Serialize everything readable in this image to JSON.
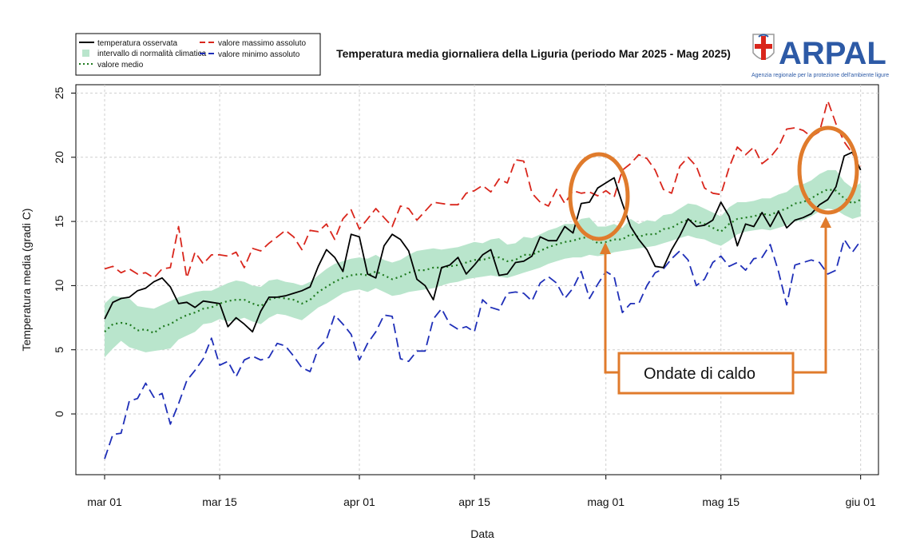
{
  "chart_data": {
    "type": "line",
    "title": "Temperatura media giornaliera della Liguria (periodo Mar 2025 - Mag 2025)",
    "xlabel": "Data",
    "ylabel": "Temperatura media (gradi C)",
    "ylim": [
      -4.5,
      25.5
    ],
    "yticks": [
      "0",
      "5",
      "10",
      "15",
      "20",
      "25"
    ],
    "xticks": [
      {
        "label": "mar 01",
        "day": 0
      },
      {
        "label": "mar 15",
        "day": 14
      },
      {
        "label": "apr 01",
        "day": 31
      },
      {
        "label": "apr 15",
        "day": 45
      },
      {
        "label": "mag 01",
        "day": 61
      },
      {
        "label": "mag 15",
        "day": 75
      },
      {
        "label": "giu 01",
        "day": 92
      }
    ],
    "grid": true,
    "legend_position": "top-left",
    "legend": [
      {
        "label": "temperatura osservata",
        "color": "#000000",
        "style": "solid"
      },
      {
        "label": "intervallo di normalità climatica",
        "color": "#b9e5cc",
        "style": "band"
      },
      {
        "label": "valore medio",
        "color": "#1f7a1f",
        "style": "dotted"
      },
      {
        "label": "valore massimo assoluto",
        "color": "#d9261c",
        "style": "dashed"
      },
      {
        "label": "valore minimo assoluto",
        "color": "#1f2fb8",
        "style": "dashed"
      }
    ],
    "series": [
      {
        "name": "temperatura osservata",
        "color": "#000000",
        "values": [
          7.4,
          8.7,
          9.0,
          9.1,
          9.6,
          9.8,
          10.3,
          10.6,
          9.9,
          8.6,
          8.7,
          8.3,
          8.8,
          8.7,
          8.6,
          6.8,
          7.5,
          7.0,
          6.4,
          8.0,
          9.1,
          9.1,
          9.2,
          9.4,
          9.6,
          9.9,
          11.5,
          12.8,
          12.2,
          11.1,
          14.0,
          13.8,
          10.9,
          10.6,
          13.1,
          14.0,
          13.6,
          12.7,
          10.5,
          10.0,
          8.9,
          11.4,
          11.6,
          12.2,
          10.9,
          11.6,
          12.4,
          12.8,
          10.8,
          10.9,
          11.8,
          11.9,
          12.3,
          13.8,
          13.5,
          13.5,
          14.6,
          14.1,
          16.4,
          16.5,
          17.6,
          18.0,
          18.4,
          16.4,
          14.6,
          13.6,
          12.8,
          11.5,
          11.4,
          12.8,
          13.9,
          15.2,
          14.6,
          14.7,
          15.1,
          16.5,
          15.4,
          13.1,
          14.8,
          14.6,
          15.7,
          14.6,
          15.8,
          14.5,
          15.1,
          15.3,
          15.6,
          16.3,
          16.7,
          17.7,
          20.1,
          20.4,
          19.0
        ]
      },
      {
        "name": "valore medio",
        "color": "#1f7a1f",
        "values": [
          6.4,
          7.0,
          7.1,
          7.0,
          6.5,
          6.6,
          6.3,
          6.8,
          7.0,
          7.4,
          7.7,
          7.9,
          8.2,
          8.3,
          8.6,
          8.8,
          8.9,
          8.9,
          8.6,
          8.4,
          8.9,
          9.1,
          9.0,
          8.9,
          8.6,
          8.9,
          9.5,
          9.9,
          10.3,
          10.6,
          10.8,
          10.9,
          10.8,
          11.1,
          10.8,
          10.5,
          10.7,
          11.0,
          11.2,
          11.2,
          11.4,
          11.4,
          11.5,
          11.6,
          11.8,
          12.0,
          12.0,
          12.2,
          12.2,
          11.9,
          12.0,
          12.4,
          12.4,
          12.7,
          13.0,
          13.2,
          13.4,
          13.5,
          13.7,
          13.8,
          13.3,
          13.4,
          13.6,
          13.6,
          14.0,
          13.8,
          14.0,
          14.0,
          14.4,
          14.5,
          14.9,
          15.1,
          15.0,
          14.8,
          14.5,
          14.2,
          14.8,
          15.2,
          15.3,
          15.4,
          15.6,
          15.5,
          15.8,
          16.0,
          16.4,
          16.5,
          16.8,
          17.2,
          17.5,
          17.4,
          16.8,
          16.4,
          16.7
        ]
      },
      {
        "name": "valore massimo assoluto",
        "color": "#d9261c",
        "values": [
          11.3,
          11.5,
          11.0,
          11.3,
          10.9,
          11.0,
          10.6,
          11.3,
          11.4,
          14.6,
          10.6,
          12.6,
          11.7,
          12.4,
          12.4,
          12.3,
          12.6,
          11.4,
          12.9,
          12.7,
          13.3,
          13.8,
          14.3,
          13.8,
          12.8,
          14.3,
          14.2,
          14.8,
          13.6,
          15.2,
          15.9,
          14.4,
          15.2,
          16.0,
          15.3,
          14.6,
          16.2,
          16.0,
          15.1,
          15.8,
          16.5,
          16.4,
          16.3,
          16.3,
          17.2,
          17.4,
          17.8,
          17.3,
          18.3,
          18.0,
          19.8,
          19.7,
          17.2,
          16.5,
          16.2,
          17.5,
          16.4,
          17.4,
          17.2,
          17.3,
          17.0,
          17.4,
          16.9,
          19.0,
          19.5,
          20.2,
          19.9,
          19.0,
          17.5,
          17.2,
          19.3,
          20.0,
          19.3,
          17.6,
          17.2,
          17.1,
          19.2,
          20.8,
          20.2,
          20.8,
          19.5,
          20.0,
          20.8,
          22.2,
          22.3,
          22.1,
          21.6,
          22.0,
          24.4,
          22.6,
          21.2,
          20.3,
          19.3
        ]
      },
      {
        "name": "valore minimo assoluto",
        "color": "#1f2fb8",
        "values": [
          -3.5,
          -1.6,
          -1.5,
          1.0,
          1.2,
          2.4,
          1.3,
          1.6,
          -0.8,
          0.8,
          2.6,
          3.4,
          4.3,
          5.9,
          3.8,
          4.1,
          2.9,
          4.2,
          4.5,
          4.2,
          4.4,
          5.5,
          5.3,
          4.5,
          3.6,
          3.3,
          5.1,
          5.8,
          7.7,
          7.0,
          6.2,
          4.2,
          5.5,
          6.4,
          7.7,
          7.6,
          4.3,
          4.1,
          4.9,
          4.9,
          7.4,
          8.2,
          7.0,
          6.6,
          6.8,
          6.4,
          8.9,
          8.3,
          8.1,
          9.4,
          9.5,
          9.4,
          8.8,
          10.2,
          10.7,
          10.2,
          9.0,
          9.8,
          11.1,
          9.0,
          10.1,
          11.1,
          10.7,
          7.9,
          8.6,
          8.6,
          10.0,
          11.0,
          11.3,
          12.1,
          12.7,
          12.0,
          10.0,
          10.5,
          11.8,
          12.3,
          11.5,
          11.8,
          11.2,
          12.1,
          12.2,
          13.2,
          11.1,
          8.5,
          11.6,
          11.8,
          12.0,
          11.8,
          10.9,
          11.2,
          13.6,
          12.6,
          13.5
        ]
      },
      {
        "name": "intervallo di normalità climatica",
        "color": "#b9e5cc",
        "band": true,
        "lower": [
          4.4,
          5.1,
          5.7,
          5.2,
          5.0,
          4.8,
          4.9,
          5.0,
          5.1,
          5.8,
          6.1,
          6.4,
          7.0,
          7.1,
          7.4,
          7.2,
          7.3,
          7.5,
          7.2,
          7.0,
          7.5,
          7.8,
          7.7,
          7.5,
          7.3,
          7.8,
          8.3,
          8.6,
          9.0,
          9.4,
          9.6,
          9.7,
          9.5,
          9.8,
          9.5,
          9.2,
          9.3,
          9.5,
          9.6,
          9.7,
          9.8,
          10.0,
          10.2,
          10.3,
          10.5,
          10.6,
          10.7,
          10.8,
          10.7,
          10.6,
          10.8,
          11.0,
          11.2,
          11.4,
          11.7,
          11.9,
          12.1,
          12.2,
          12.2,
          12.4,
          12.3,
          12.4,
          12.6,
          12.7,
          12.8,
          12.9,
          13.0,
          13.1,
          13.3,
          13.5,
          13.7,
          13.9,
          13.7,
          13.6,
          13.3,
          13.1,
          13.5,
          14.0,
          14.2,
          14.3,
          14.4,
          14.3,
          14.5,
          14.7,
          15.0,
          15.1,
          15.4,
          15.8,
          16.0,
          15.9,
          15.5,
          15.2,
          15.4
        ],
        "upper": [
          8.6,
          9.2,
          9.1,
          9.0,
          8.4,
          8.3,
          8.2,
          8.5,
          8.8,
          9.1,
          9.3,
          9.5,
          9.6,
          9.6,
          9.9,
          10.2,
          10.4,
          10.3,
          10.0,
          9.9,
          10.4,
          10.5,
          10.3,
          10.2,
          10.0,
          10.3,
          10.8,
          11.3,
          11.7,
          11.9,
          12.1,
          12.2,
          12.1,
          12.4,
          12.0,
          11.8,
          12.0,
          12.4,
          12.7,
          12.8,
          12.9,
          12.8,
          12.9,
          13.0,
          13.2,
          13.4,
          13.3,
          13.6,
          13.7,
          13.2,
          13.3,
          13.8,
          13.7,
          14.0,
          14.3,
          14.5,
          14.8,
          14.8,
          15.2,
          15.3,
          14.6,
          14.6,
          14.8,
          14.5,
          15.2,
          14.8,
          15.1,
          15.0,
          15.5,
          15.6,
          16.0,
          16.4,
          16.3,
          16.0,
          15.7,
          15.4,
          16.1,
          16.5,
          16.5,
          16.6,
          16.8,
          16.8,
          17.1,
          17.3,
          17.8,
          17.9,
          18.2,
          18.7,
          19.0,
          19.0,
          18.1,
          17.6,
          18.0
        ]
      }
    ],
    "annotations": [
      {
        "text": "Ondate di caldo",
        "color": "#e07b2c",
        "targets": [
          {
            "day_start": 58,
            "day_end": 65,
            "y": 16.8
          },
          {
            "day_start": 89,
            "day_end": 94,
            "y": 19.9
          }
        ]
      }
    ]
  },
  "logo": {
    "name": "ARPAL",
    "subtitle": "Agenzia regionale per la protezione dell'ambiente ligure"
  }
}
